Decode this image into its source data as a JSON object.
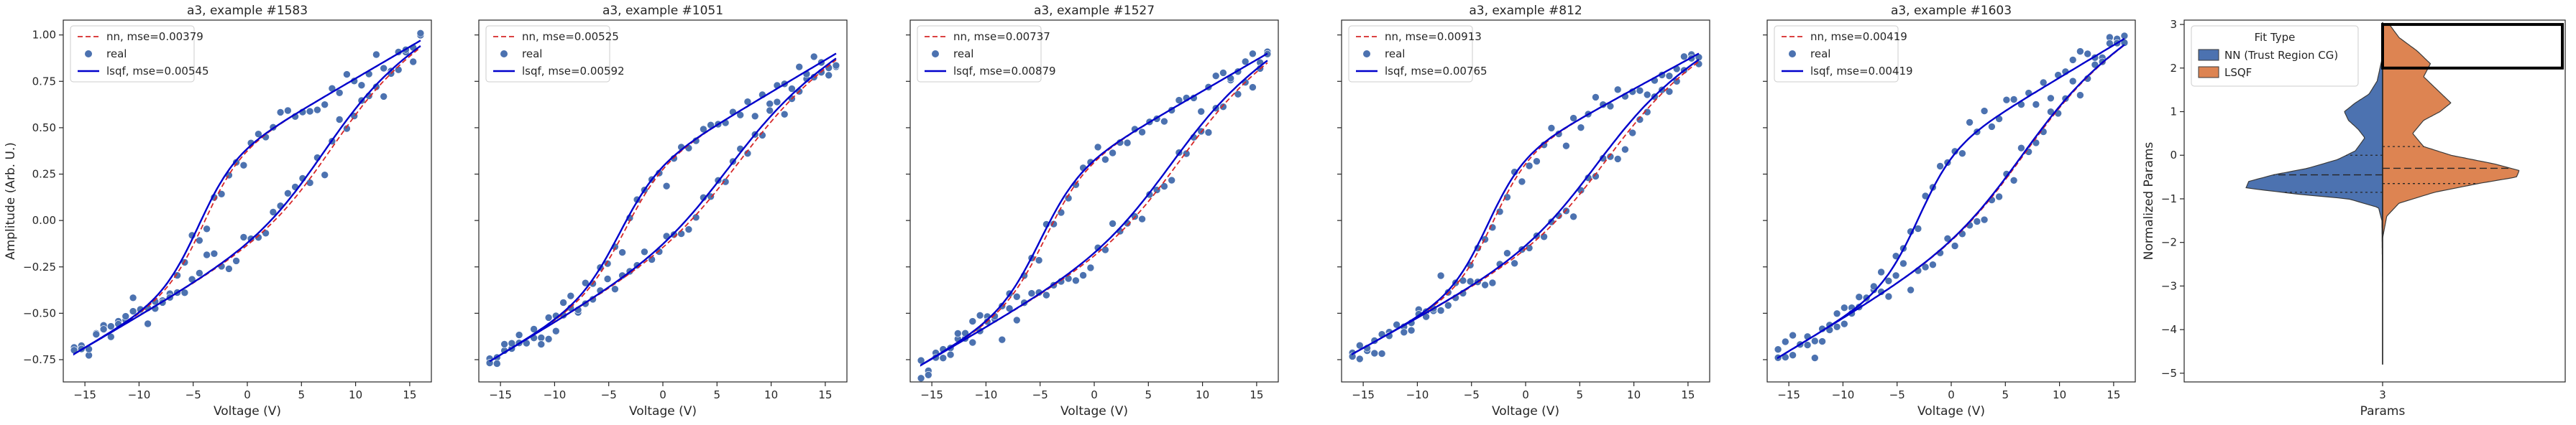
{
  "chart_data": [
    {
      "type": "line",
      "title": "a3, example #1583",
      "xlabel": "Voltage (V)",
      "ylabel": "Amplitude (Arb. U.)",
      "xlim": [
        -17,
        17
      ],
      "ylim": [
        -0.87,
        1.08
      ],
      "xticks": [
        -15,
        -10,
        -5,
        0,
        5,
        10,
        15
      ],
      "yticks": [
        -0.75,
        -0.5,
        -0.25,
        0.0,
        0.25,
        0.5,
        0.75,
        1.0
      ],
      "xtick_labels": [
        "−15",
        "−10",
        "−5",
        "0",
        "5",
        "10",
        "15"
      ],
      "ytick_labels": [
        "−0.75",
        "−0.50",
        "−0.25",
        "0.00",
        "0.25",
        "0.50",
        "0.75",
        "1.00"
      ],
      "legend": [
        "nn, mse=0.00379",
        "real",
        "lsqf, mse=0.00545"
      ],
      "legend_position": "upper-left",
      "curve_params": {
        "lo": -0.72,
        "hi": 0.97,
        "amp": 0.6,
        "sharp_up": 0.6,
        "mid_up": -4.5,
        "sharp_dn": 0.33,
        "mid_dn": 7.0,
        "nn_up": -4.0,
        "nn_dn": 7.8
      },
      "series": [
        {
          "name": "nn, mse=0.00379",
          "style": "dashed",
          "color": "#d62728"
        },
        {
          "name": "real",
          "style": "scatter",
          "color": "#4c72b0"
        },
        {
          "name": "lsqf, mse=0.00545",
          "style": "solid",
          "color": "#0000cc"
        }
      ]
    },
    {
      "type": "line",
      "title": "a3, example #1051",
      "xlabel": "Voltage (V)",
      "ylabel": "",
      "xlim": [
        -17,
        17
      ],
      "ylim": [
        -0.87,
        1.08
      ],
      "xticks": [
        -15,
        -10,
        -5,
        0,
        5,
        10,
        15
      ],
      "yticks": [
        -0.75,
        -0.5,
        -0.25,
        0.0,
        0.25,
        0.5,
        0.75,
        1.0
      ],
      "xtick_labels": [
        "−15",
        "−10",
        "−5",
        "0",
        "5",
        "10",
        "15"
      ],
      "ytick_labels": [],
      "legend": [
        "nn, mse=0.00525",
        "real",
        "lsqf, mse=0.00592"
      ],
      "legend_position": "upper-left",
      "curve_params": {
        "lo": -0.76,
        "hi": 0.9,
        "amp": 0.55,
        "sharp_up": 0.55,
        "mid_up": -4.0,
        "sharp_dn": 0.3,
        "mid_dn": 6.0,
        "nn_up": -3.5,
        "nn_dn": 7.0
      },
      "series": [
        {
          "name": "nn, mse=0.00525",
          "style": "dashed",
          "color": "#d62728"
        },
        {
          "name": "real",
          "style": "scatter",
          "color": "#4c72b0"
        },
        {
          "name": "lsqf, mse=0.00592",
          "style": "solid",
          "color": "#0000cc"
        }
      ]
    },
    {
      "type": "line",
      "title": "a3, example #1527",
      "xlabel": "Voltage (V)",
      "ylabel": "",
      "xlim": [
        -17,
        17
      ],
      "ylim": [
        -0.87,
        1.08
      ],
      "xticks": [
        -15,
        -10,
        -5,
        0,
        5,
        10,
        15
      ],
      "yticks": [
        -0.75,
        -0.5,
        -0.25,
        0.0,
        0.25,
        0.5,
        0.75,
        1.0
      ],
      "xtick_labels": [
        "−15",
        "−10",
        "−5",
        "0",
        "5",
        "10",
        "15"
      ],
      "ytick_labels": [],
      "legend": [
        "nn, mse=0.00737",
        "real",
        "lsqf, mse=0.00879"
      ],
      "legend_position": "upper-left",
      "curve_params": {
        "lo": -0.78,
        "hi": 0.9,
        "amp": 0.6,
        "sharp_up": 0.55,
        "mid_up": -5.0,
        "sharp_dn": 0.3,
        "mid_dn": 7.0,
        "nn_up": -4.5,
        "nn_dn": 8.0
      },
      "series": [
        {
          "name": "nn, mse=0.00737",
          "style": "dashed",
          "color": "#d62728"
        },
        {
          "name": "real",
          "style": "scatter",
          "color": "#4c72b0"
        },
        {
          "name": "lsqf, mse=0.00879",
          "style": "solid",
          "color": "#0000cc"
        }
      ]
    },
    {
      "type": "line",
      "title": "a3, example #812",
      "xlabel": "Voltage (V)",
      "ylabel": "",
      "xlim": [
        -17,
        17
      ],
      "ylim": [
        -0.87,
        1.08
      ],
      "xticks": [
        -15,
        -10,
        -5,
        0,
        5,
        10,
        15
      ],
      "yticks": [
        -0.75,
        -0.5,
        -0.25,
        0.0,
        0.25,
        0.5,
        0.75,
        1.0
      ],
      "xtick_labels": [
        "−15",
        "−10",
        "−5",
        "0",
        "5",
        "10",
        "15"
      ],
      "ytick_labels": [],
      "legend": [
        "nn, mse=0.00913",
        "real",
        "lsqf, mse=0.00765"
      ],
      "legend_position": "upper-left",
      "curve_params": {
        "lo": -0.72,
        "hi": 0.9,
        "amp": 0.6,
        "sharp_up": 0.6,
        "mid_up": -3.5,
        "sharp_dn": 0.3,
        "mid_dn": 6.5,
        "nn_up": -3.0,
        "nn_dn": 7.5
      },
      "series": [
        {
          "name": "nn, mse=0.00913",
          "style": "dashed",
          "color": "#d62728"
        },
        {
          "name": "real",
          "style": "scatter",
          "color": "#4c72b0"
        },
        {
          "name": "lsqf, mse=0.00765",
          "style": "solid",
          "color": "#0000cc"
        }
      ]
    },
    {
      "type": "line",
      "title": "a3, example #1603",
      "xlabel": "Voltage (V)",
      "ylabel": "",
      "xlim": [
        -17,
        17
      ],
      "ylim": [
        -0.87,
        1.08
      ],
      "xticks": [
        -15,
        -10,
        -5,
        0,
        5,
        10,
        15
      ],
      "yticks": [
        -0.75,
        -0.5,
        -0.25,
        0.0,
        0.25,
        0.5,
        0.75,
        1.0
      ],
      "xtick_labels": [
        "−15",
        "−10",
        "−5",
        "0",
        "5",
        "10",
        "15"
      ],
      "ytick_labels": [],
      "legend": [
        "nn, mse=0.00419",
        "real",
        "lsqf, mse=0.00419"
      ],
      "legend_position": "upper-left",
      "curve_params": {
        "lo": -0.74,
        "hi": 0.98,
        "amp": 0.6,
        "sharp_up": 0.6,
        "mid_up": -3.0,
        "sharp_dn": 0.3,
        "mid_dn": 6.5,
        "nn_up": -3.0,
        "nn_dn": 6.7
      },
      "series": [
        {
          "name": "nn, mse=0.00419",
          "style": "dashed",
          "color": "#d62728"
        },
        {
          "name": "real",
          "style": "scatter",
          "color": "#4c72b0"
        },
        {
          "name": "lsqf, mse=0.00419",
          "style": "solid",
          "color": "#0000cc"
        }
      ]
    },
    {
      "type": "violin",
      "title": "",
      "xlabel": "Params",
      "ylabel": "Normalized Params",
      "categories": [
        "3"
      ],
      "ylim": [
        -5.2,
        3.1
      ],
      "yticks": [
        -5,
        -4,
        -3,
        -2,
        -1,
        0,
        1,
        2,
        3
      ],
      "ytick_labels": [
        "−5",
        "−4",
        "−3",
        "−2",
        "−1",
        "0",
        "1",
        "2",
        "3"
      ],
      "legend_title": "Fit Type",
      "legend_position": "upper-left",
      "highlight_box": {
        "y_range": [
          2.0,
          3.0
        ]
      },
      "series": [
        {
          "name": "NN (Trust Region CG)",
          "color": "#4c72b0",
          "side": "left",
          "quartiles": {
            "q1": -0.85,
            "median": -0.45,
            "q3": 0.0
          },
          "density": [
            [
              -4.8,
              0.0
            ],
            [
              -3.0,
              0.0
            ],
            [
              -1.5,
              0.005
            ],
            [
              -1.2,
              0.03
            ],
            [
              -1.0,
              0.25
            ],
            [
              -0.9,
              0.6
            ],
            [
              -0.75,
              1.0
            ],
            [
              -0.6,
              0.98
            ],
            [
              -0.45,
              0.8
            ],
            [
              -0.3,
              0.55
            ],
            [
              -0.1,
              0.33
            ],
            [
              0.1,
              0.2
            ],
            [
              0.4,
              0.13
            ],
            [
              0.6,
              0.18
            ],
            [
              0.8,
              0.25
            ],
            [
              1.0,
              0.28
            ],
            [
              1.2,
              0.2
            ],
            [
              1.4,
              0.1
            ],
            [
              1.7,
              0.04
            ],
            [
              2.2,
              0.005
            ]
          ]
        },
        {
          "name": "LSQF",
          "color": "#dd8452",
          "side": "right",
          "quartiles": {
            "q1": -0.65,
            "median": -0.3,
            "q3": 0.2
          },
          "density": [
            [
              -1.9,
              0.0
            ],
            [
              -1.4,
              0.03
            ],
            [
              -1.1,
              0.12
            ],
            [
              -0.85,
              0.38
            ],
            [
              -0.65,
              0.7
            ],
            [
              -0.5,
              0.98
            ],
            [
              -0.35,
              1.0
            ],
            [
              -0.2,
              0.82
            ],
            [
              0.0,
              0.5
            ],
            [
              0.2,
              0.3
            ],
            [
              0.5,
              0.22
            ],
            [
              0.8,
              0.3
            ],
            [
              1.0,
              0.42
            ],
            [
              1.2,
              0.5
            ],
            [
              1.5,
              0.4
            ],
            [
              1.8,
              0.3
            ],
            [
              2.1,
              0.35
            ],
            [
              2.4,
              0.25
            ],
            [
              2.7,
              0.12
            ],
            [
              3.0,
              0.05
            ]
          ]
        }
      ]
    }
  ]
}
